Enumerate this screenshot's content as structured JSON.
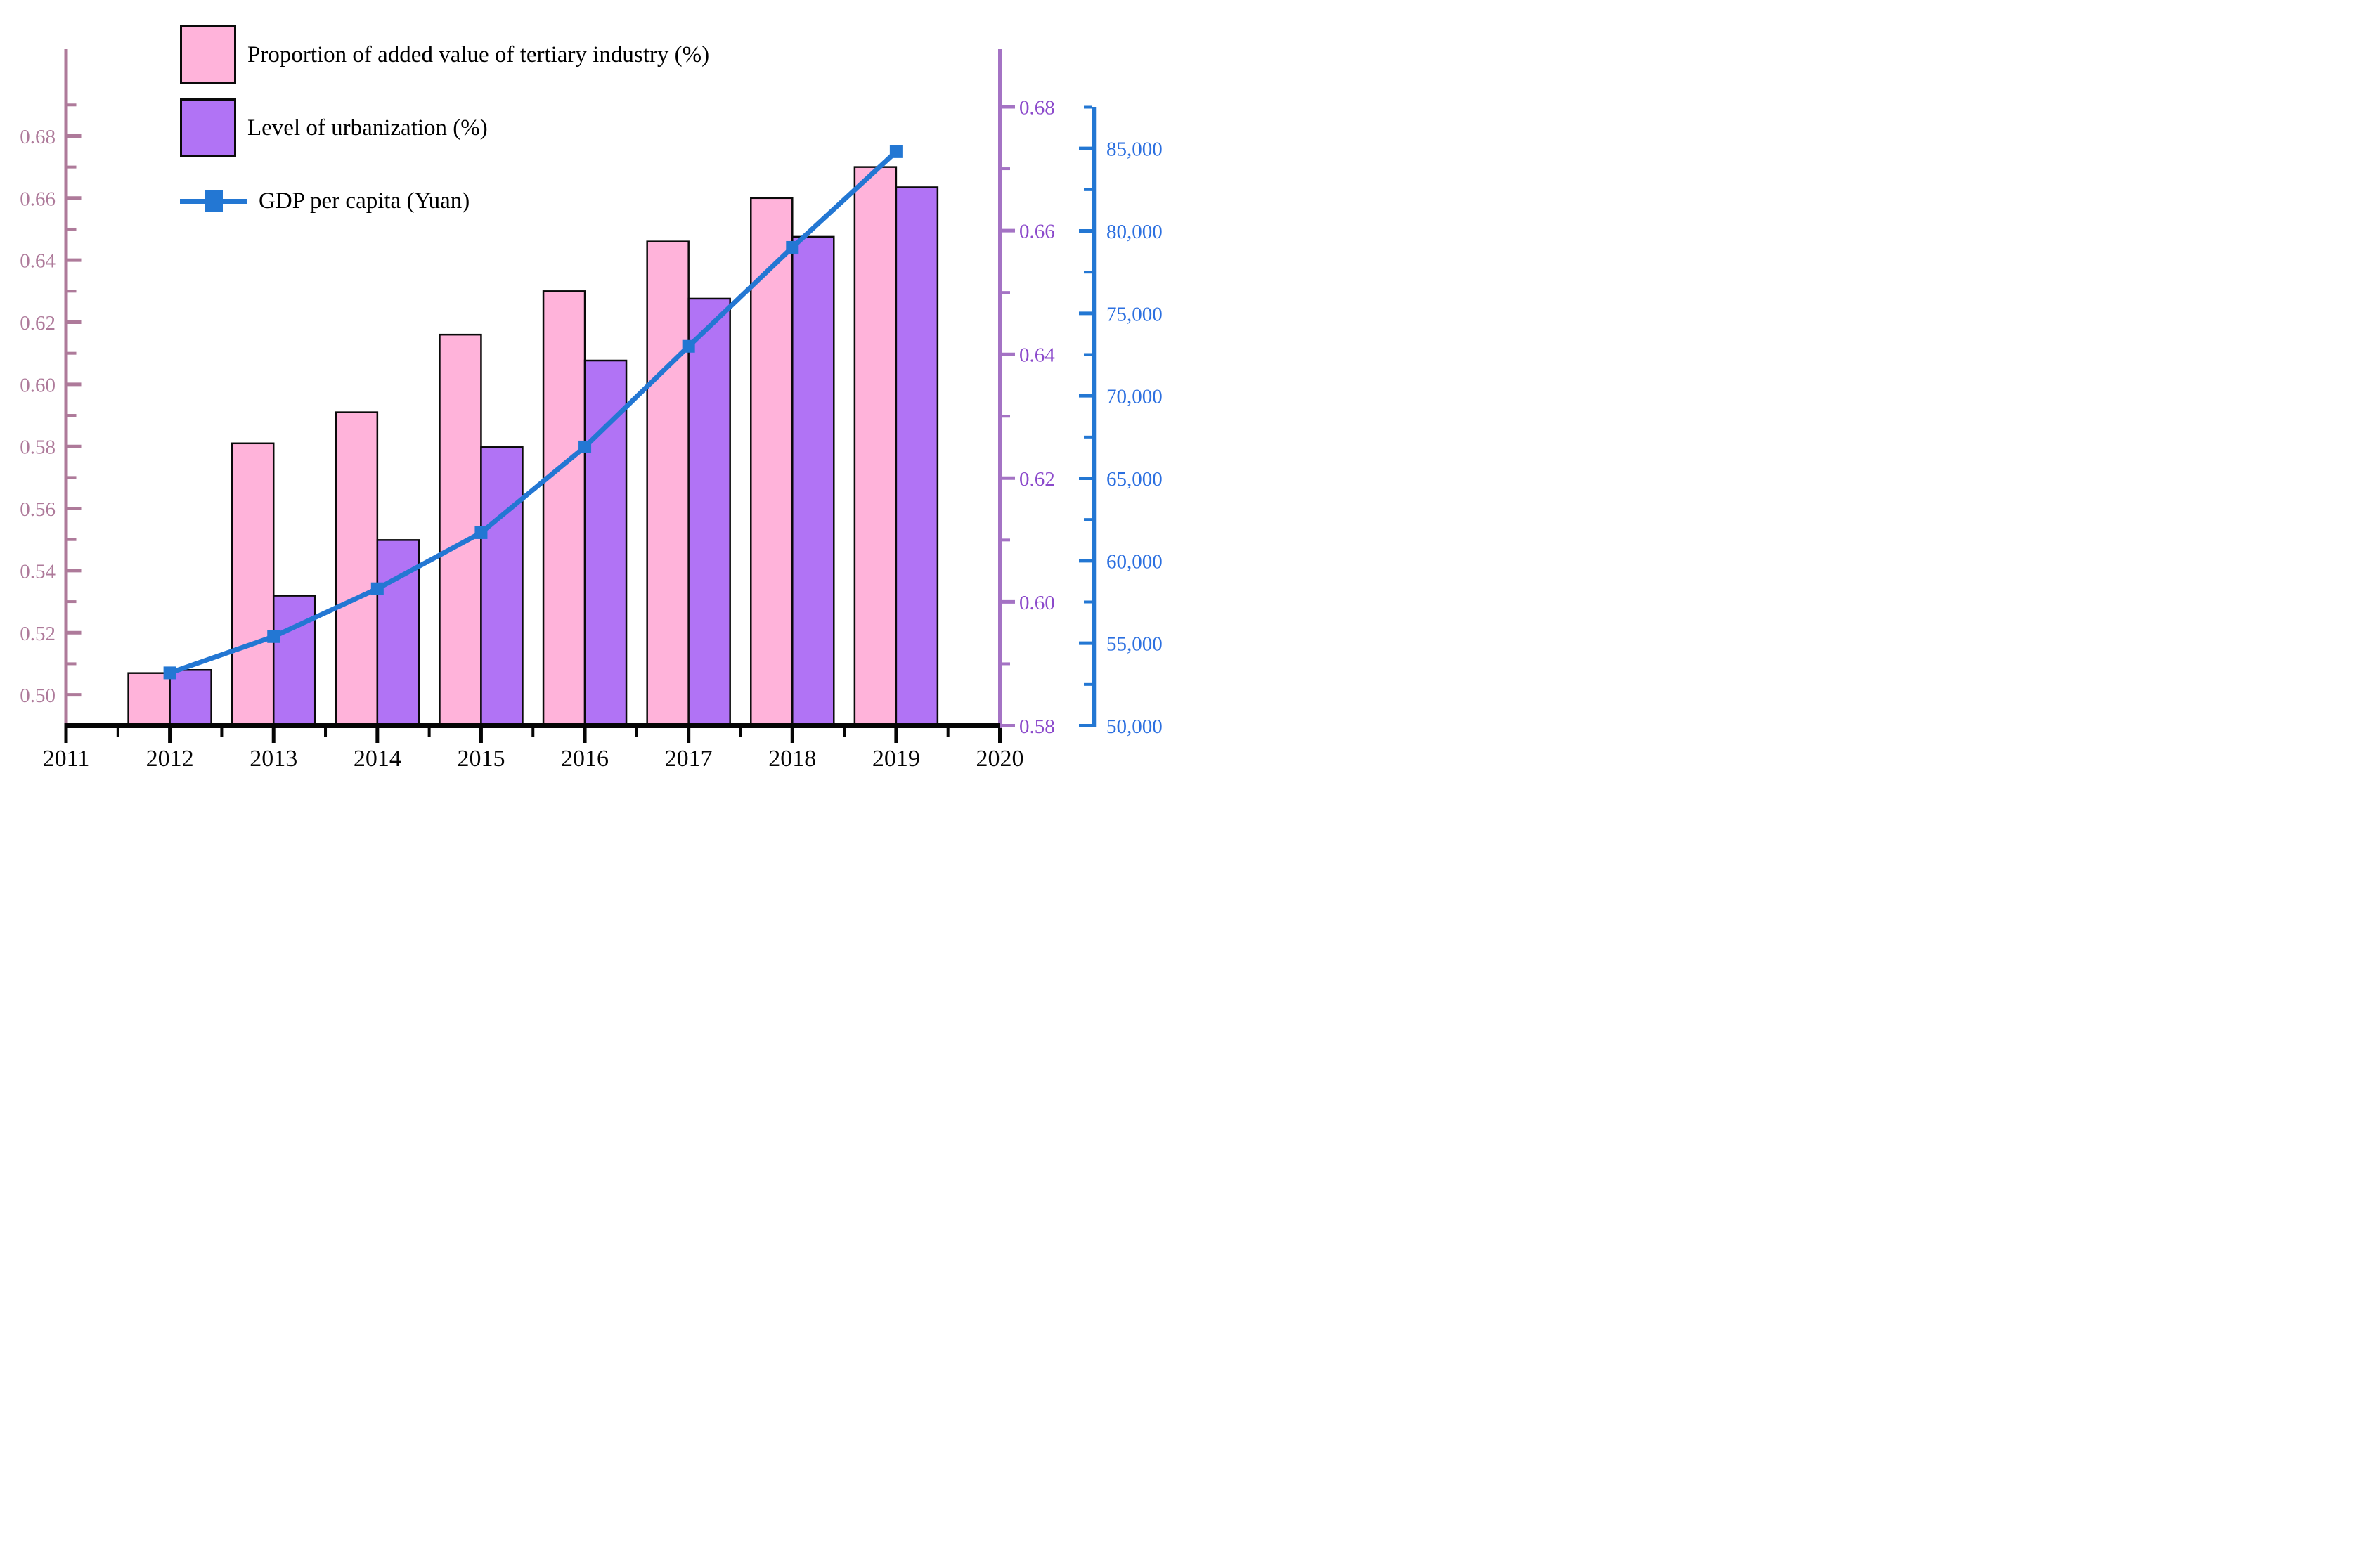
{
  "chart_data": {
    "type": "bar+line",
    "title": "",
    "x_axis": {
      "tick_labels": [
        "2011",
        "2012",
        "2013",
        "2014",
        "2015",
        "2016",
        "2017",
        "2018",
        "2019",
        "2020"
      ],
      "tick_values": [
        2011,
        2012,
        2013,
        2014,
        2015,
        2016,
        2017,
        2018,
        2019,
        2020
      ],
      "minor_tick_values": [
        2011.5,
        2012.5,
        2013.5,
        2014.5,
        2015.5,
        2016.5,
        2017.5,
        2018.5,
        2019.5
      ],
      "color": "#050505"
    },
    "categories": [
      2012,
      2013,
      2014,
      2015,
      2016,
      2017,
      2018,
      2019
    ],
    "series": [
      {
        "name": "Proportion of added value of tertiary industry (%)",
        "type": "bar",
        "axis": "left",
        "color": "#FFB3DA",
        "outline": "#0a0a0a",
        "values": [
          0.507,
          0.581,
          0.591,
          0.616,
          0.63,
          0.646,
          0.66,
          0.67
        ]
      },
      {
        "name": "Level of urbanization (%)",
        "type": "bar",
        "axis": "right_inner",
        "color": "#B173F5",
        "outline": "#0a0a0a",
        "values": [
          0.589,
          0.601,
          0.61,
          0.625,
          0.639,
          0.649,
          0.659,
          0.667
        ]
      },
      {
        "name": "GDP per capita (Yuan)",
        "type": "line",
        "axis": "right_outer",
        "color": "#2377D3",
        "marker": "square",
        "values": [
          53200,
          55400,
          58300,
          61700,
          66900,
          73000,
          79000,
          84800
        ]
      }
    ],
    "axes": {
      "left": {
        "color": "#AE7A9A",
        "major_tick_labels": [
          "0.68",
          "0.66",
          "0.64",
          "0.62",
          "0.60",
          "0.58",
          "0.56",
          "0.54",
          "0.52",
          "0.50"
        ],
        "major_tick_values": [
          0.68,
          0.66,
          0.64,
          0.62,
          0.6,
          0.58,
          0.56,
          0.54,
          0.52,
          0.5
        ],
        "minor_tick_values": [
          0.69,
          0.67,
          0.65,
          0.63,
          0.61,
          0.59,
          0.57,
          0.55,
          0.53,
          0.51
        ],
        "range": [
          0.49,
          0.708
        ]
      },
      "right_inner": {
        "color_line": "#A473C4",
        "color_labels": "#8B49CB",
        "major_tick_labels": [
          "0.68",
          "0.66",
          "0.64",
          "0.62",
          "0.60",
          "0.58"
        ],
        "major_tick_values": [
          0.68,
          0.66,
          0.64,
          0.62,
          0.6,
          0.58
        ],
        "minor_tick_values": [
          0.67,
          0.65,
          0.63,
          0.61,
          0.59
        ],
        "range": [
          0.58,
          0.689
        ]
      },
      "right_outer": {
        "color": "#2B6FE0",
        "color_line": "#2377D3",
        "major_tick_labels": [
          "85,000",
          "80,000",
          "75,000",
          "70,000",
          "65,000",
          "60,000",
          "55,000",
          "50,000"
        ],
        "major_tick_values": [
          85000,
          80000,
          75000,
          70000,
          65000,
          60000,
          55000,
          50000
        ],
        "minor_tick_values": [
          87500,
          82500,
          77500,
          72500,
          67500,
          62500,
          57500,
          52500
        ],
        "range": [
          50000,
          87500
        ]
      }
    },
    "legend": {
      "position": "top-left",
      "grid": "off"
    }
  }
}
